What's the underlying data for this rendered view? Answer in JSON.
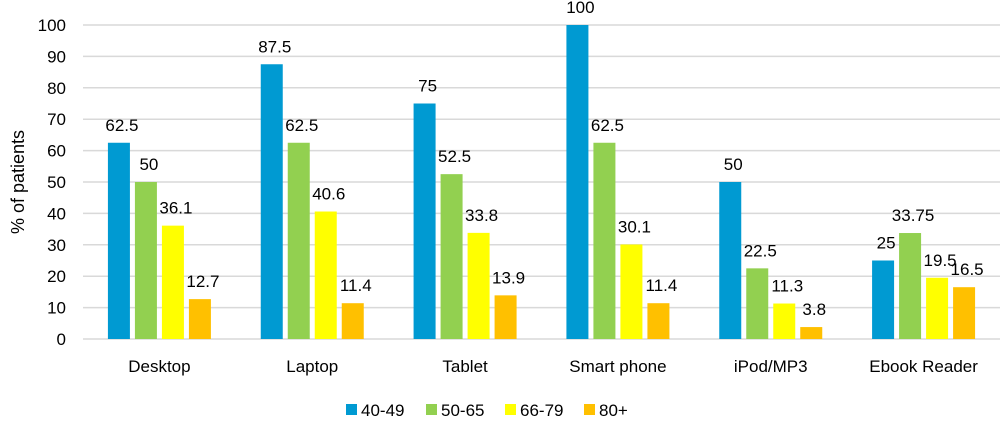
{
  "chart_data": {
    "type": "bar",
    "title": "",
    "xlabel": "",
    "ylabel": "% of patients",
    "ylim": [
      0,
      100
    ],
    "yticks": [
      0,
      10,
      20,
      30,
      40,
      50,
      60,
      70,
      80,
      90,
      100
    ],
    "grid": true,
    "legend_position": "bottom",
    "categories": [
      "Desktop",
      "Laptop",
      "Tablet",
      "Smart phone",
      "iPod/MP3",
      "Ebook Reader"
    ],
    "series": [
      {
        "name": "40-49",
        "color": "#009ad2",
        "values": [
          62.5,
          87.5,
          75,
          100,
          50,
          25
        ],
        "labels": [
          "62.5",
          "87.5",
          "75",
          "100",
          "50",
          "25"
        ]
      },
      {
        "name": "50-65",
        "color": "#92d050",
        "values": [
          50,
          62.5,
          52.5,
          62.5,
          22.5,
          33.75
        ],
        "labels": [
          "50",
          "62.5",
          "52.5",
          "62.5",
          "22.5",
          "33.75"
        ]
      },
      {
        "name": "66-79",
        "color": "#ffff00",
        "values": [
          36.1,
          40.6,
          33.8,
          30.1,
          11.3,
          19.5
        ],
        "labels": [
          "36.1",
          "40.6",
          "33.8",
          "30.1",
          "11.3",
          "19.5"
        ]
      },
      {
        "name": "80+",
        "color": "#ffc000",
        "values": [
          12.7,
          11.4,
          13.9,
          11.4,
          3.8,
          16.5
        ],
        "labels": [
          "12.7",
          "11.4",
          "13.9",
          "11.4",
          "3.8",
          "16.5"
        ]
      }
    ]
  }
}
